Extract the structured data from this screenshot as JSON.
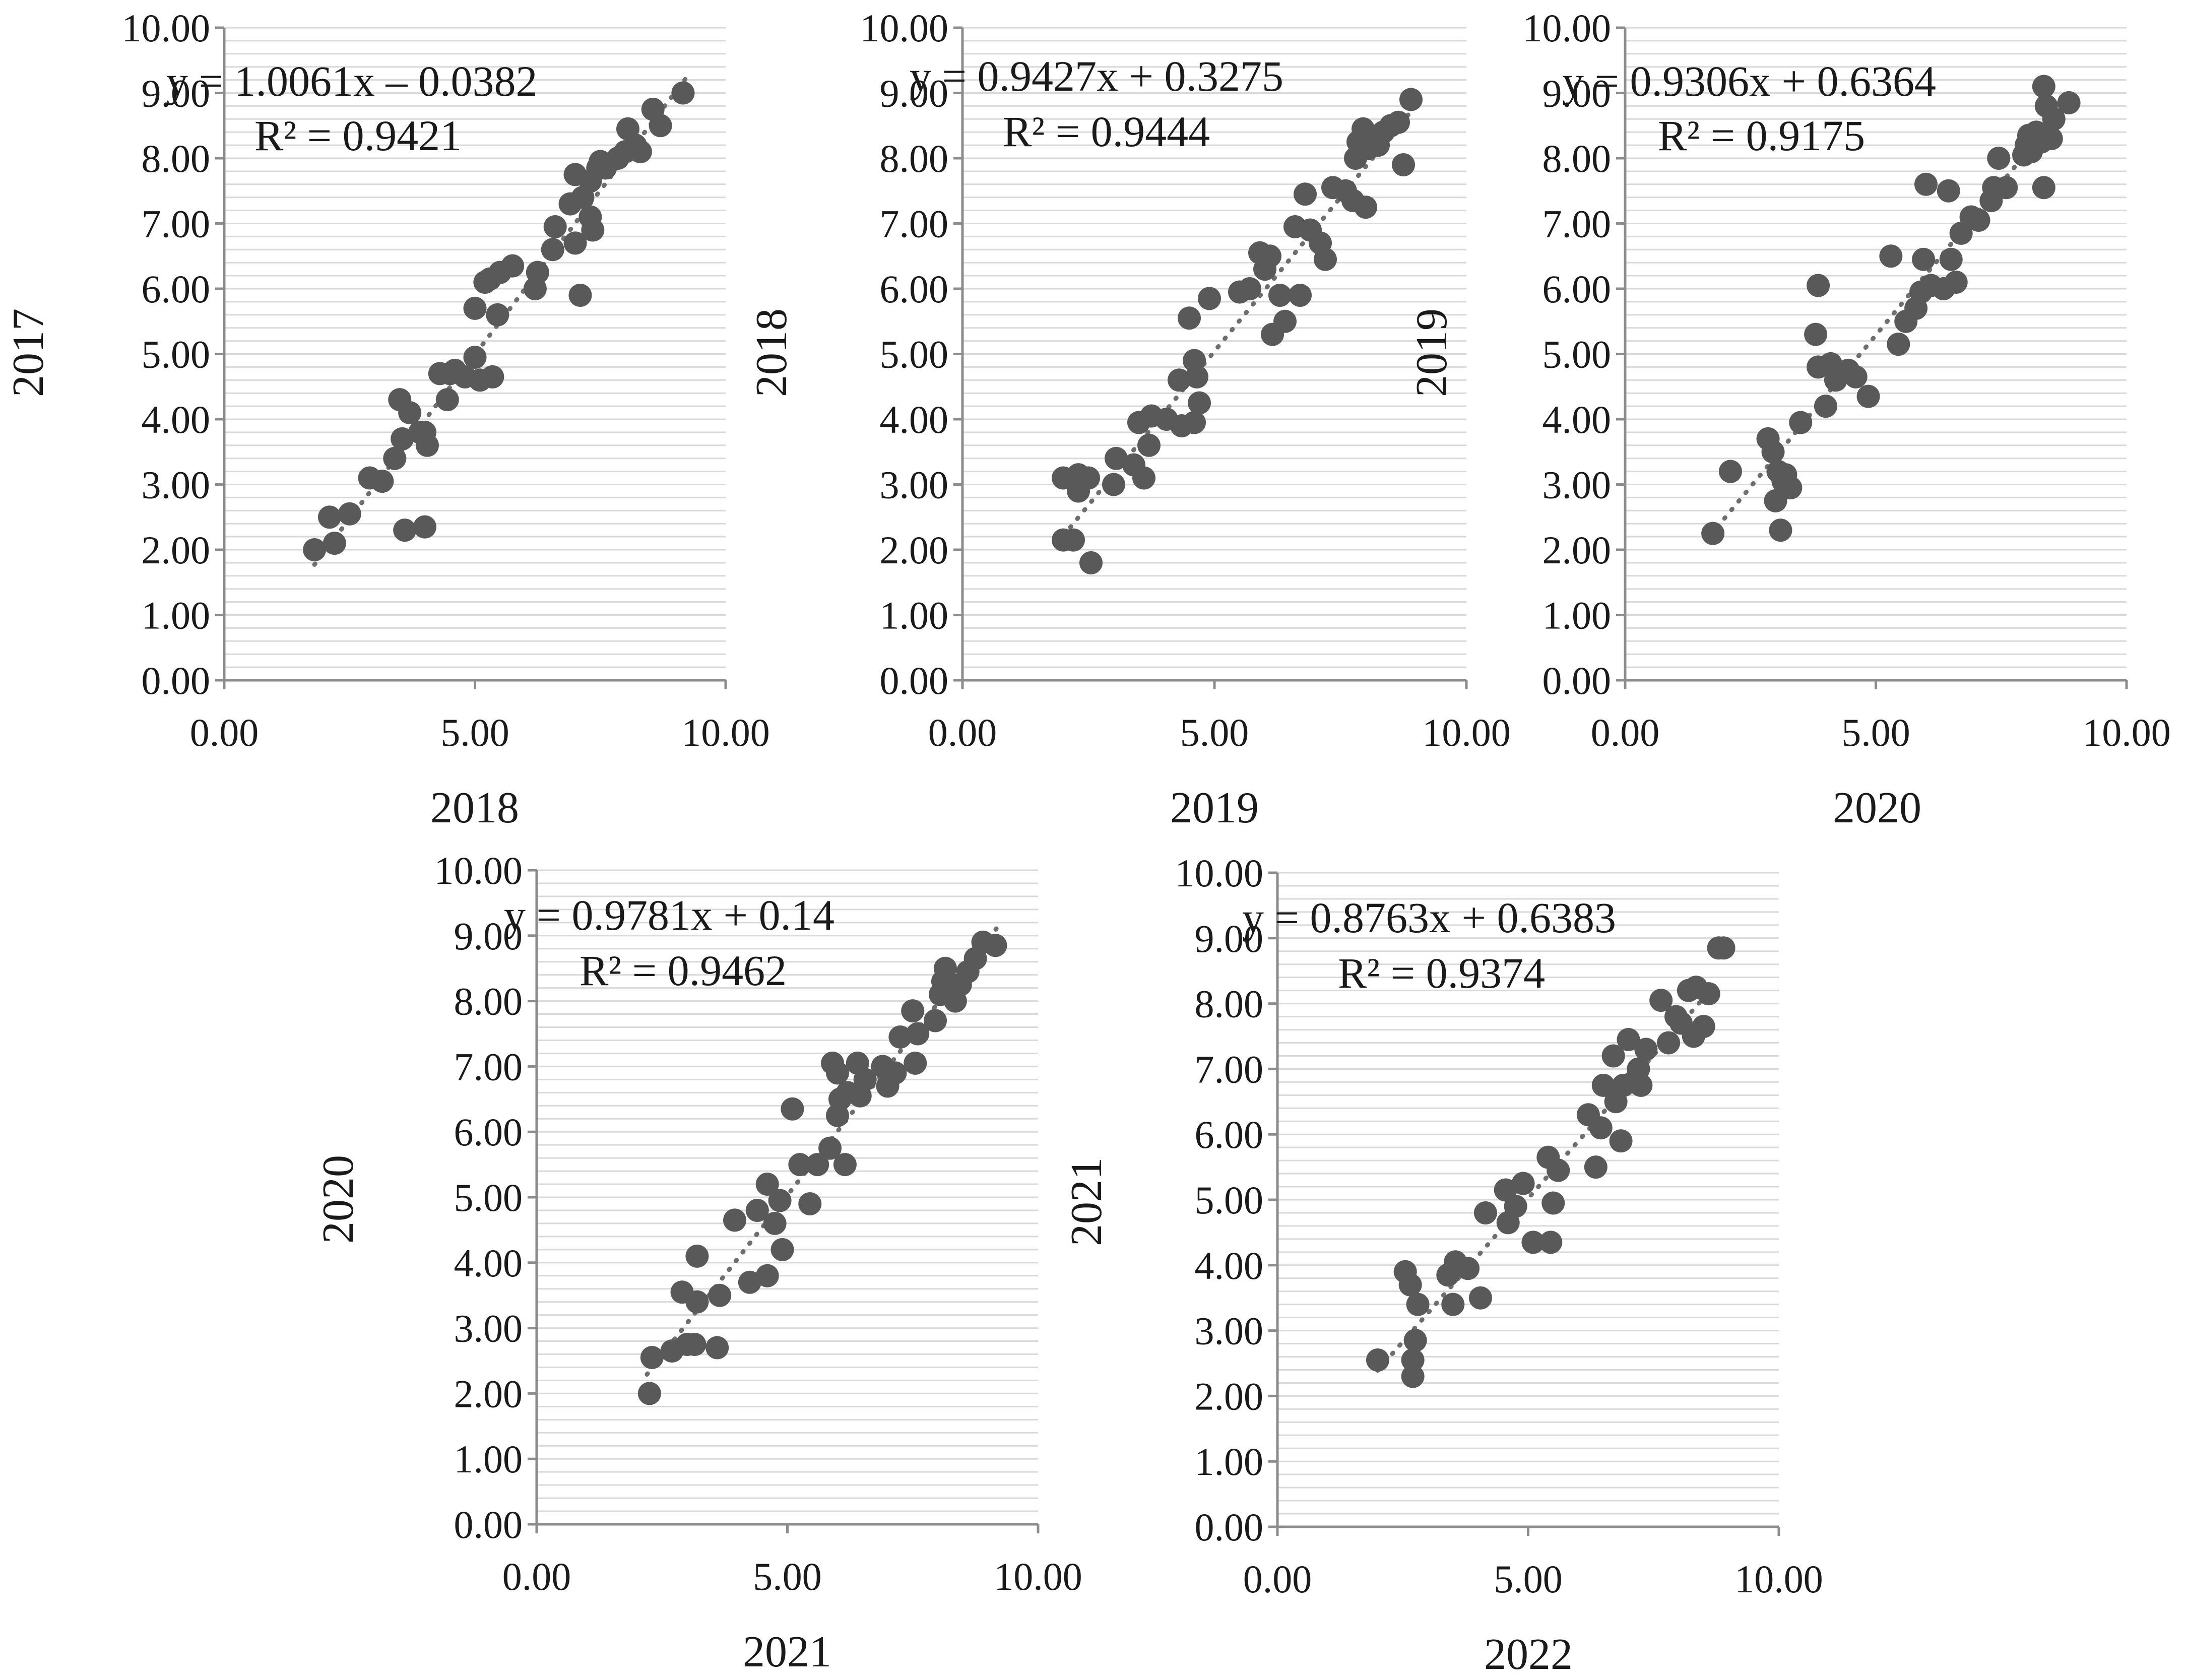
{
  "figure": {
    "colors": {
      "point": "#595959",
      "trend": "#6e6e6e",
      "grid": "#d9d9d9",
      "axis": "#8c8c8c"
    }
  },
  "chart_data": [
    {
      "type": "scatter",
      "title": "",
      "xlabel": "2018",
      "ylabel": "2017",
      "xlim": [
        0,
        10
      ],
      "ylim": [
        0,
        10
      ],
      "x_ticks": [
        "0.00",
        "5.00",
        "10.00"
      ],
      "y_ticks": [
        "0.00",
        "1.00",
        "2.00",
        "3.00",
        "4.00",
        "5.00",
        "6.00",
        "7.00",
        "8.00",
        "9.00",
        "10.00"
      ],
      "grid": true,
      "equation": "y = 1.0061x – 0.0382",
      "r_squared": "R² = 0.9421",
      "trend": {
        "slope": 1.0061,
        "intercept": -0.0382,
        "x_range": [
          1.8,
          9.2
        ]
      },
      "points": [
        [
          1.8,
          2.0
        ],
        [
          2.1,
          2.5
        ],
        [
          2.2,
          2.1
        ],
        [
          2.5,
          2.55
        ],
        [
          2.9,
          3.1
        ],
        [
          3.15,
          3.05
        ],
        [
          3.4,
          3.4
        ],
        [
          3.5,
          4.3
        ],
        [
          3.55,
          3.7
        ],
        [
          3.6,
          2.3
        ],
        [
          3.7,
          4.1
        ],
        [
          3.9,
          3.8
        ],
        [
          4.0,
          3.8
        ],
        [
          4.05,
          3.6
        ],
        [
          4.0,
          2.35
        ],
        [
          4.3,
          4.7
        ],
        [
          4.45,
          4.3
        ],
        [
          4.5,
          4.7
        ],
        [
          4.6,
          4.75
        ],
        [
          4.8,
          4.65
        ],
        [
          5.0,
          5.7
        ],
        [
          5.0,
          4.95
        ],
        [
          5.1,
          4.6
        ],
        [
          5.2,
          6.1
        ],
        [
          5.3,
          6.15
        ],
        [
          5.35,
          4.65
        ],
        [
          5.45,
          5.6
        ],
        [
          5.5,
          6.25
        ],
        [
          5.75,
          6.35
        ],
        [
          6.2,
          6.0
        ],
        [
          6.25,
          6.25
        ],
        [
          6.55,
          6.6
        ],
        [
          6.6,
          6.95
        ],
        [
          6.9,
          7.3
        ],
        [
          7.0,
          7.75
        ],
        [
          7.0,
          6.7
        ],
        [
          7.1,
          5.9
        ],
        [
          7.15,
          7.4
        ],
        [
          7.3,
          7.1
        ],
        [
          7.35,
          6.9
        ],
        [
          7.3,
          7.65
        ],
        [
          7.45,
          7.85
        ],
        [
          7.5,
          7.95
        ],
        [
          7.6,
          7.85
        ],
        [
          7.85,
          8.0
        ],
        [
          8.0,
          8.1
        ],
        [
          8.05,
          8.45
        ],
        [
          8.2,
          8.2
        ],
        [
          8.3,
          8.1
        ],
        [
          8.55,
          8.75
        ],
        [
          8.7,
          8.5
        ],
        [
          9.15,
          9.0
        ]
      ]
    },
    {
      "type": "scatter",
      "title": "",
      "xlabel": "2019",
      "ylabel": "2018",
      "xlim": [
        0,
        10
      ],
      "ylim": [
        0,
        10
      ],
      "x_ticks": [
        "0.00",
        "5.00",
        "10.00"
      ],
      "y_ticks": [
        "0.00",
        "1.00",
        "2.00",
        "3.00",
        "4.00",
        "5.00",
        "6.00",
        "7.00",
        "8.00",
        "9.00",
        "10.00"
      ],
      "grid": true,
      "equation": "y = 0.9427x + 0.3275",
      "r_squared": "R² = 0.9444",
      "trend": {
        "slope": 0.9427,
        "intercept": 0.3275,
        "x_range": [
          2.0,
          8.9
        ]
      },
      "points": [
        [
          2.0,
          3.1
        ],
        [
          2.0,
          2.15
        ],
        [
          2.2,
          2.15
        ],
        [
          2.3,
          2.9
        ],
        [
          2.3,
          3.15
        ],
        [
          2.5,
          3.1
        ],
        [
          2.55,
          1.8
        ],
        [
          3.0,
          3.0
        ],
        [
          3.05,
          3.4
        ],
        [
          3.4,
          3.3
        ],
        [
          3.5,
          3.95
        ],
        [
          3.6,
          3.1
        ],
        [
          3.7,
          3.6
        ],
        [
          3.75,
          4.05
        ],
        [
          4.05,
          4.0
        ],
        [
          4.3,
          4.6
        ],
        [
          4.35,
          3.9
        ],
        [
          4.5,
          5.55
        ],
        [
          4.6,
          3.95
        ],
        [
          4.6,
          4.9
        ],
        [
          4.65,
          4.65
        ],
        [
          4.7,
          4.25
        ],
        [
          4.9,
          5.85
        ],
        [
          5.5,
          5.95
        ],
        [
          5.7,
          6.0
        ],
        [
          5.9,
          6.55
        ],
        [
          6.0,
          6.3
        ],
        [
          6.1,
          6.5
        ],
        [
          6.15,
          5.3
        ],
        [
          6.3,
          5.9
        ],
        [
          6.4,
          5.5
        ],
        [
          6.6,
          6.95
        ],
        [
          6.7,
          5.9
        ],
        [
          6.8,
          7.45
        ],
        [
          6.9,
          6.9
        ],
        [
          7.1,
          6.7
        ],
        [
          7.2,
          6.45
        ],
        [
          7.35,
          7.55
        ],
        [
          7.6,
          7.5
        ],
        [
          7.75,
          7.35
        ],
        [
          7.8,
          8.0
        ],
        [
          7.85,
          8.25
        ],
        [
          7.95,
          8.45
        ],
        [
          8.0,
          7.25
        ],
        [
          8.05,
          8.15
        ],
        [
          8.1,
          8.3
        ],
        [
          8.25,
          8.2
        ],
        [
          8.35,
          8.4
        ],
        [
          8.5,
          8.5
        ],
        [
          8.65,
          8.55
        ],
        [
          8.75,
          7.9
        ],
        [
          8.9,
          8.9
        ]
      ]
    },
    {
      "type": "scatter",
      "title": "",
      "xlabel": "2020",
      "ylabel": "2019",
      "xlim": [
        0,
        10
      ],
      "ylim": [
        0,
        10
      ],
      "x_ticks": [
        "0.00",
        "5.00",
        "10.00"
      ],
      "y_ticks": [
        "0.00",
        "1.00",
        "2.00",
        "3.00",
        "4.00",
        "5.00",
        "6.00",
        "7.00",
        "8.00",
        "9.00",
        "10.00"
      ],
      "grid": true,
      "equation": "y = 0.9306x + 0.6364",
      "r_squared": "R² = 0.9175",
      "trend": {
        "slope": 0.9306,
        "intercept": 0.6364,
        "x_range": [
          1.7,
          8.6
        ]
      },
      "points": [
        [
          1.75,
          2.25
        ],
        [
          2.1,
          3.2
        ],
        [
          2.85,
          3.7
        ],
        [
          2.95,
          3.5
        ],
        [
          3.0,
          2.75
        ],
        [
          3.05,
          3.2
        ],
        [
          3.1,
          2.3
        ],
        [
          3.15,
          3.05
        ],
        [
          3.2,
          3.15
        ],
        [
          3.3,
          2.95
        ],
        [
          3.5,
          3.95
        ],
        [
          3.8,
          5.3
        ],
        [
          3.85,
          6.05
        ],
        [
          3.85,
          4.8
        ],
        [
          4.0,
          4.2
        ],
        [
          4.1,
          4.85
        ],
        [
          4.2,
          4.6
        ],
        [
          4.45,
          4.75
        ],
        [
          4.6,
          4.65
        ],
        [
          4.85,
          4.35
        ],
        [
          5.3,
          6.5
        ],
        [
          5.45,
          5.15
        ],
        [
          5.6,
          5.5
        ],
        [
          5.8,
          5.7
        ],
        [
          5.9,
          5.95
        ],
        [
          5.95,
          6.45
        ],
        [
          6.0,
          7.6
        ],
        [
          6.1,
          6.05
        ],
        [
          6.35,
          6.0
        ],
        [
          6.45,
          7.5
        ],
        [
          6.5,
          6.45
        ],
        [
          6.6,
          6.1
        ],
        [
          6.7,
          6.85
        ],
        [
          6.9,
          7.1
        ],
        [
          7.05,
          7.05
        ],
        [
          7.3,
          7.35
        ],
        [
          7.35,
          7.55
        ],
        [
          7.45,
          8.0
        ],
        [
          7.6,
          7.55
        ],
        [
          7.95,
          8.05
        ],
        [
          8.0,
          8.2
        ],
        [
          8.05,
          8.35
        ],
        [
          8.1,
          8.1
        ],
        [
          8.15,
          8.25
        ],
        [
          8.2,
          8.4
        ],
        [
          8.3,
          8.25
        ],
        [
          8.35,
          7.55
        ],
        [
          8.4,
          8.8
        ],
        [
          8.35,
          9.1
        ],
        [
          8.5,
          8.3
        ],
        [
          8.55,
          8.6
        ],
        [
          8.85,
          8.85
        ]
      ]
    },
    {
      "type": "scatter",
      "title": "",
      "xlabel": "2021",
      "ylabel": "2020",
      "xlim": [
        0,
        10
      ],
      "ylim": [
        0,
        10
      ],
      "x_ticks": [
        "0.00",
        "5.00",
        "10.00"
      ],
      "y_ticks": [
        "0.00",
        "1.00",
        "2.00",
        "3.00",
        "4.00",
        "5.00",
        "6.00",
        "7.00",
        "8.00",
        "9.00",
        "10.00"
      ],
      "grid": true,
      "equation": "y = 0.9781x + 0.14",
      "r_squared": "R² = 0.9462",
      "trend": {
        "slope": 0.9781,
        "intercept": 0.14,
        "x_range": [
          2.2,
          9.2
        ]
      },
      "points": [
        [
          2.25,
          2.0
        ],
        [
          2.3,
          2.55
        ],
        [
          2.7,
          2.65
        ],
        [
          2.9,
          3.55
        ],
        [
          3.0,
          2.75
        ],
        [
          3.15,
          2.75
        ],
        [
          3.2,
          4.1
        ],
        [
          3.2,
          3.4
        ],
        [
          3.6,
          2.7
        ],
        [
          3.65,
          3.5
        ],
        [
          3.95,
          4.65
        ],
        [
          4.25,
          3.7
        ],
        [
          4.4,
          4.8
        ],
        [
          4.6,
          3.8
        ],
        [
          4.6,
          5.2
        ],
        [
          4.75,
          4.6
        ],
        [
          4.85,
          4.95
        ],
        [
          4.9,
          4.2
        ],
        [
          5.1,
          6.35
        ],
        [
          5.25,
          5.5
        ],
        [
          5.45,
          4.9
        ],
        [
          5.6,
          5.5
        ],
        [
          5.85,
          5.75
        ],
        [
          5.9,
          7.05
        ],
        [
          6.0,
          6.9
        ],
        [
          6.0,
          6.25
        ],
        [
          6.05,
          6.5
        ],
        [
          6.15,
          5.5
        ],
        [
          6.2,
          6.6
        ],
        [
          6.4,
          7.05
        ],
        [
          6.45,
          6.55
        ],
        [
          6.55,
          6.8
        ],
        [
          6.9,
          7.0
        ],
        [
          7.0,
          6.7
        ],
        [
          7.15,
          6.9
        ],
        [
          7.25,
          7.45
        ],
        [
          7.5,
          7.85
        ],
        [
          7.55,
          7.05
        ],
        [
          7.6,
          7.5
        ],
        [
          7.95,
          7.7
        ],
        [
          8.05,
          8.1
        ],
        [
          8.1,
          8.3
        ],
        [
          8.15,
          8.5
        ],
        [
          8.25,
          8.15
        ],
        [
          8.35,
          8.0
        ],
        [
          8.45,
          8.25
        ],
        [
          8.6,
          8.45
        ],
        [
          8.75,
          8.65
        ],
        [
          8.9,
          8.9
        ],
        [
          9.15,
          8.85
        ]
      ]
    },
    {
      "type": "scatter",
      "title": "",
      "xlabel": "2022",
      "ylabel": "2021",
      "xlim": [
        0,
        10
      ],
      "ylim": [
        0,
        10
      ],
      "x_ticks": [
        "0.00",
        "5.00",
        "10.00"
      ],
      "y_ticks": [
        "0.00",
        "1.00",
        "2.00",
        "3.00",
        "4.00",
        "5.00",
        "6.00",
        "7.00",
        "8.00",
        "9.00",
        "10.00"
      ],
      "grid": true,
      "equation": "y = 0.8763x + 0.6383",
      "r_squared": "R² = 0.9374",
      "trend": {
        "slope": 0.8763,
        "intercept": 0.6383,
        "x_range": [
          2.0,
          8.8
        ]
      },
      "points": [
        [
          2.0,
          2.55
        ],
        [
          2.55,
          3.9
        ],
        [
          2.65,
          3.7
        ],
        [
          2.7,
          2.55
        ],
        [
          2.7,
          2.3
        ],
        [
          2.75,
          2.85
        ],
        [
          2.8,
          3.4
        ],
        [
          3.4,
          3.85
        ],
        [
          3.5,
          3.4
        ],
        [
          3.55,
          4.05
        ],
        [
          3.8,
          3.95
        ],
        [
          4.05,
          3.5
        ],
        [
          4.15,
          4.8
        ],
        [
          4.55,
          5.15
        ],
        [
          4.6,
          4.65
        ],
        [
          4.75,
          4.9
        ],
        [
          4.9,
          5.25
        ],
        [
          5.1,
          4.35
        ],
        [
          5.4,
          5.65
        ],
        [
          5.45,
          4.35
        ],
        [
          5.5,
          4.95
        ],
        [
          5.6,
          5.45
        ],
        [
          6.2,
          6.3
        ],
        [
          6.35,
          5.5
        ],
        [
          6.45,
          6.1
        ],
        [
          6.5,
          6.75
        ],
        [
          6.7,
          7.2
        ],
        [
          6.75,
          6.5
        ],
        [
          6.85,
          5.9
        ],
        [
          6.9,
          6.75
        ],
        [
          7.0,
          7.45
        ],
        [
          7.1,
          6.8
        ],
        [
          7.2,
          7.0
        ],
        [
          7.25,
          6.75
        ],
        [
          7.35,
          7.3
        ],
        [
          7.65,
          8.05
        ],
        [
          7.8,
          7.4
        ],
        [
          7.95,
          7.8
        ],
        [
          8.05,
          7.7
        ],
        [
          8.2,
          8.2
        ],
        [
          8.3,
          7.5
        ],
        [
          8.35,
          8.25
        ],
        [
          8.5,
          7.65
        ],
        [
          8.6,
          8.15
        ],
        [
          8.8,
          8.85
        ],
        [
          8.9,
          8.85
        ]
      ]
    }
  ]
}
